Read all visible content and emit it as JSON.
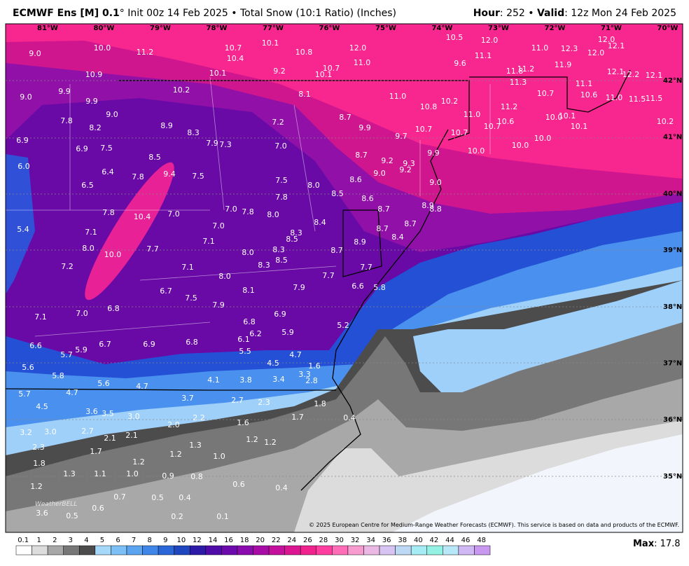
{
  "header": {
    "title_bold": "ECMWF Ens [M] 0.1",
    "title_rest": "° Init 00z 14 Feb 2025 • Total Snow (10:1 Ratio) (Inches)",
    "hour_label": "Hour",
    "hour_value": ": 252 • ",
    "valid_label": "Valid",
    "valid_value": ": 12z Mon 24 Feb 2025"
  },
  "map": {
    "longitude_labels": [
      "81°W",
      "80°W",
      "79°W",
      "78°W",
      "77°W",
      "76°W",
      "75°W",
      "74°W",
      "73°W",
      "72°W",
      "71°W",
      "70°W"
    ],
    "latitude_labels": [
      "42°N",
      "41°N",
      "40°N",
      "39°N",
      "38°N",
      "37°N",
      "36°N",
      "35°N"
    ],
    "value_labels": [
      "9.0",
      "10.0",
      "11.2",
      "10.7",
      "10.1",
      "10.4",
      "10.8",
      "12.0",
      "10.5",
      "12.0",
      "11.0",
      "12.3",
      "12.0",
      "12.0",
      "12.1",
      "11.1",
      "11.0",
      "10.7",
      "9.6",
      "11.9",
      "11.2",
      "11.8",
      "12.1",
      "12.2",
      "12.1",
      "10.9",
      "10.1",
      "9.2",
      "10.1",
      "11.3",
      "11.1",
      "9.0",
      "9.9",
      "10.2",
      "8.1",
      "11.0",
      "10.7",
      "10.6",
      "11.0",
      "11.5",
      "11.5",
      "9.9",
      "10.8",
      "10.2",
      "11.2",
      "9.0",
      "7.8",
      "11.0",
      "10.6",
      "10.0",
      "10.1",
      "8.7",
      "7.2",
      "10.2",
      "8.2",
      "8.9",
      "8.3",
      "9.9",
      "10.7",
      "10.7",
      "10.7",
      "10.1",
      "6.9",
      "9.7",
      "10.0",
      "10.0",
      "7.9",
      "7.3",
      "7.0",
      "6.9",
      "7.5",
      "10.0",
      "8.5",
      "9.9",
      "8.7",
      "9.2",
      "9.3",
      "6.0",
      "9.4",
      "6.4",
      "7.8",
      "7.5",
      "9.2",
      "9.0",
      "7.5",
      "8.6",
      "6.5",
      "8.0",
      "9.0",
      "8.5",
      "7.8",
      "8.6",
      "8.9",
      "8.8",
      "8.7",
      "7.8",
      "10.4",
      "7.0",
      "7.0",
      "7.8",
      "8.0",
      "8.4",
      "8.7",
      "5.4",
      "7.1",
      "7.0",
      "8.3",
      "8.5",
      "8.7",
      "8.4",
      "7.1",
      "8.9",
      "8.0",
      "7.7",
      "8.0",
      "8.3",
      "8.7",
      "10.0",
      "8.5",
      "7.2",
      "8.3",
      "7.1",
      "7.7",
      "8.0",
      "7.7",
      "6.6",
      "5.8",
      "7.9",
      "6.7",
      "8.1",
      "7.5",
      "7.9",
      "6.8",
      "7.0",
      "6.9",
      "7.1",
      "6.8",
      "5.2",
      "6.2",
      "5.9",
      "6.1",
      "6.6",
      "6.7",
      "6.9",
      "6.8",
      "5.9",
      "5.7",
      "5.5",
      "4.7",
      "4.5",
      "5.6",
      "1.6",
      "5.8",
      "3.3",
      "4.1",
      "3.8",
      "3.4",
      "2.8",
      "5.6",
      "4.7",
      "5.7",
      "4.7",
      "3.7",
      "2.7",
      "2.3",
      "4.5",
      "1.8",
      "3.6",
      "3.5",
      "3.0",
      "1.7",
      "2.2",
      "1.6",
      "0.4",
      "2.0",
      "3.2",
      "3.0",
      "2.7",
      "2.1",
      "2.1",
      "1.3",
      "1.2",
      "1.2",
      "2.3",
      "1.7",
      "1.2",
      "1.0",
      "1.2",
      "1.8",
      "1.3",
      "1.1",
      "1.0",
      "0.9",
      "0.8",
      "1.2",
      "0.6",
      "0.4",
      "0.7",
      "0.5",
      "0.4",
      "0.6",
      "3.6",
      "0.5",
      "0.2",
      "0.1"
    ],
    "watermark": "WeatherBELL",
    "credit": "© 2025 European Centre for Medium-Range Weather Forecasts (ECMWF). This service is based on data and products of the ECMWF."
  },
  "colorbar": {
    "labels": [
      0.1,
      1,
      2,
      3,
      4,
      5,
      6,
      7,
      8,
      9,
      10,
      12,
      14,
      16,
      18,
      20,
      22,
      24,
      26,
      28,
      30,
      32,
      34,
      36,
      38,
      40,
      42,
      44,
      46,
      48
    ],
    "colors": [
      "#ffffff",
      "#dcdcdc",
      "#a8a8a8",
      "#777777",
      "#4c4c4c",
      "#a6d8fa",
      "#7cc0f7",
      "#5aa4f0",
      "#3f86e8",
      "#2a66d8",
      "#1e46bf",
      "#2e1aa8",
      "#500ca8",
      "#6c0aae",
      "#8a0cae",
      "#a80ca6",
      "#c4109c",
      "#dc1692",
      "#f0228e",
      "#ff3ea0",
      "#ff6cb8",
      "#f89ccf",
      "#eab8e2",
      "#d8c4f2",
      "#bcd8f4",
      "#a6ecf4",
      "#94f2e4",
      "#b8e8f8",
      "#d0b8f4",
      "#c898f0"
    ]
  },
  "footer": {
    "max_label": "Max",
    "max_value": ": 17.8"
  }
}
